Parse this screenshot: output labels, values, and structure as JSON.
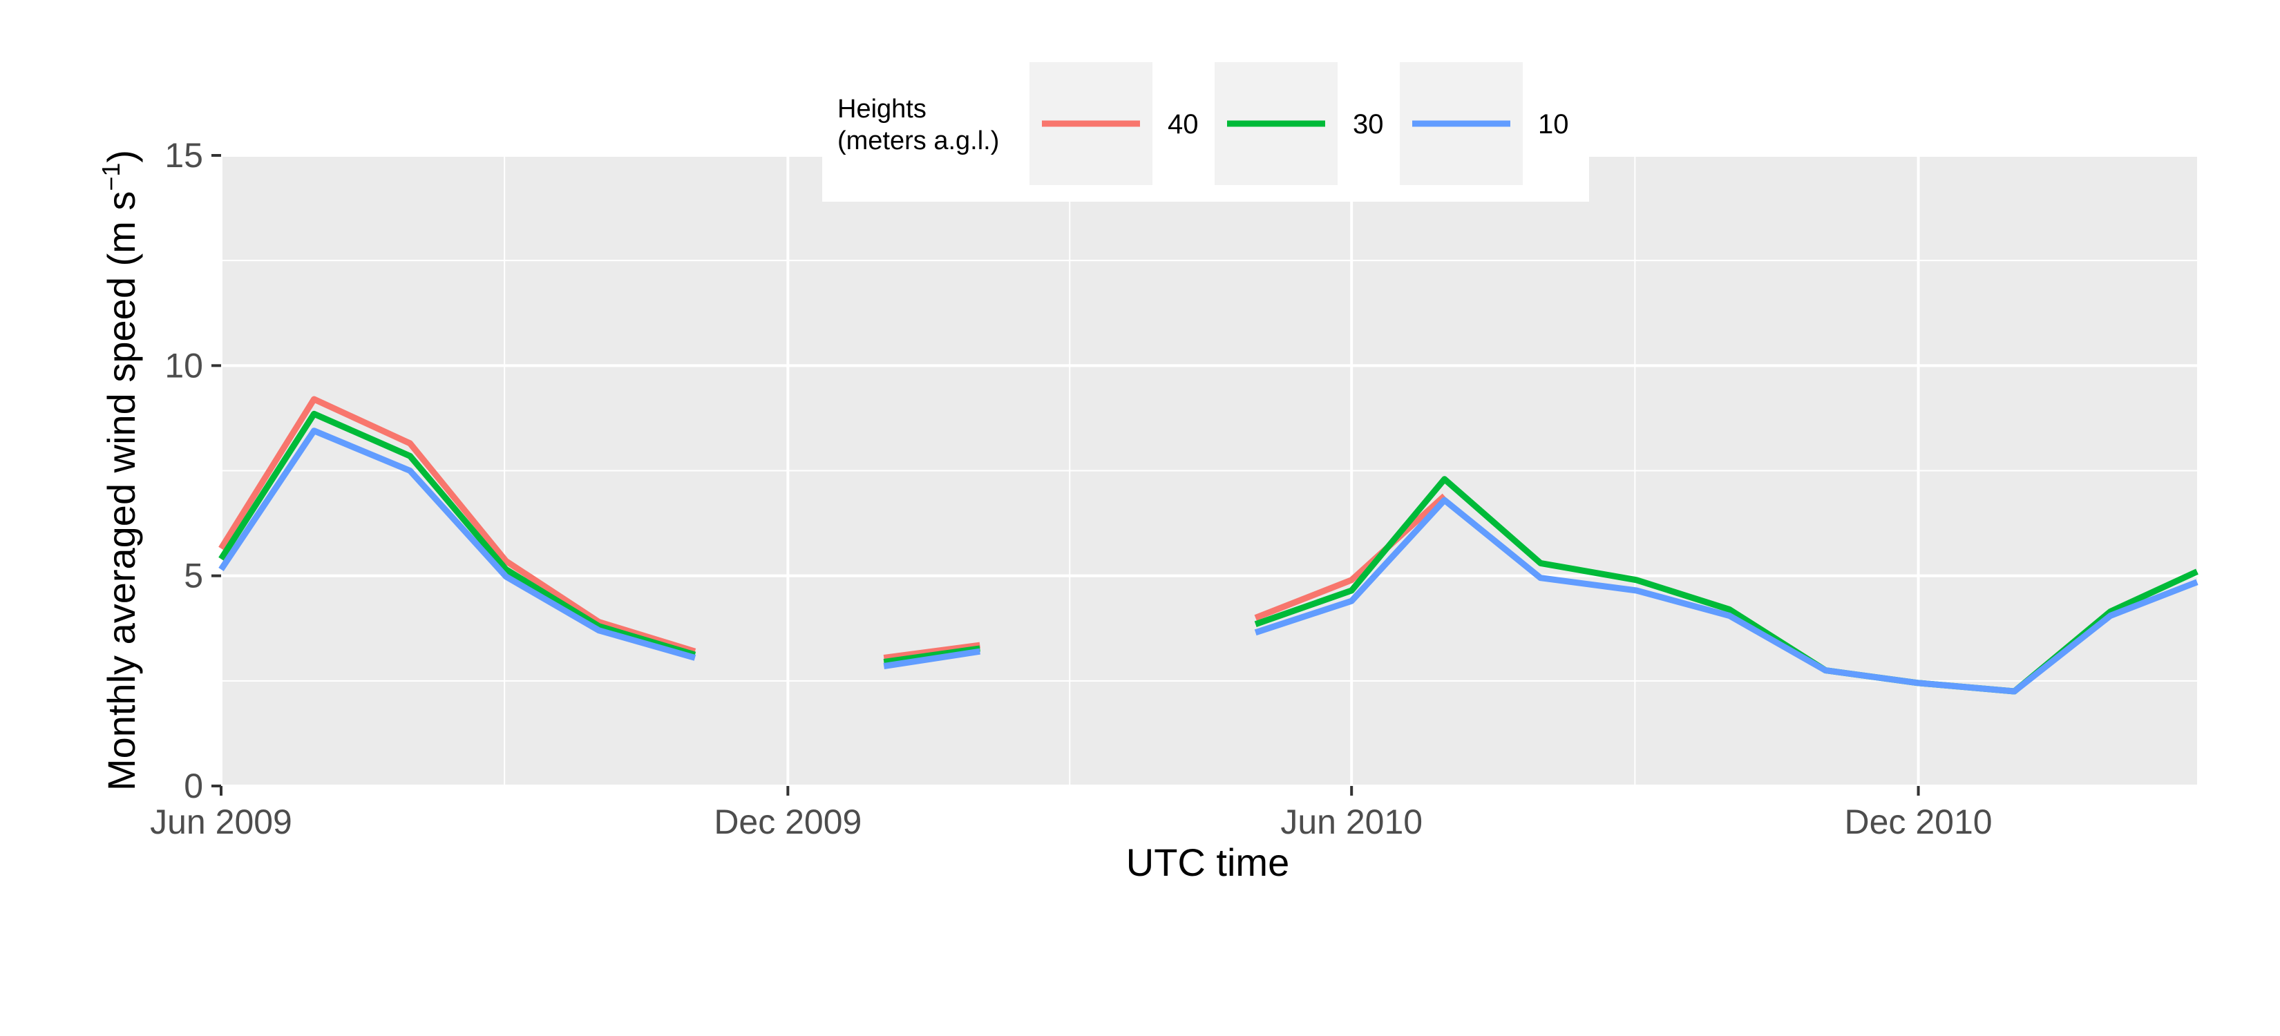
{
  "chart_data": {
    "type": "line",
    "xlabel": "UTC time",
    "ylabel": "Monthly averaged wind speed (m s",
    "ylabel_superscript": "−1",
    "ylabel_close": ")",
    "ylim": [
      0,
      15
    ],
    "yticks": [
      0,
      5,
      10,
      15
    ],
    "xlim": [
      "2009-06-01",
      "2011-03-01"
    ],
    "xticks": [
      {
        "date": "2009-06-01",
        "label": "Jun 2009"
      },
      {
        "date": "2009-12-01",
        "label": "Dec 2009"
      },
      {
        "date": "2010-06-01",
        "label": "Jun 2010"
      },
      {
        "date": "2010-12-01",
        "label": "Dec 2010"
      }
    ],
    "grid": true,
    "legend": {
      "title_line1": "Heights",
      "title_line2": "(meters a.g.l.)",
      "position": "top"
    },
    "series": [
      {
        "name": "40",
        "color": "#F8766D",
        "segments": [
          [
            [
              "2009-06-01",
              5.65
            ],
            [
              "2009-07-01",
              9.2
            ],
            [
              "2009-08-01",
              8.15
            ],
            [
              "2009-09-01",
              5.35
            ],
            [
              "2009-10-01",
              3.9
            ],
            [
              "2009-11-01",
              3.2
            ]
          ],
          [
            [
              "2010-01-01",
              3.05
            ],
            [
              "2010-02-01",
              3.35
            ]
          ],
          [
            [
              "2010-05-01",
              4.0
            ],
            [
              "2010-06-01",
              4.9
            ],
            [
              "2010-07-01",
              6.9
            ]
          ]
        ]
      },
      {
        "name": "30",
        "color": "#00BA38",
        "segments": [
          [
            [
              "2009-06-01",
              5.4
            ],
            [
              "2009-07-01",
              8.85
            ],
            [
              "2009-08-01",
              7.85
            ],
            [
              "2009-09-01",
              5.15
            ],
            [
              "2009-10-01",
              3.8
            ],
            [
              "2009-11-01",
              3.12
            ]
          ],
          [
            [
              "2010-01-01",
              2.95
            ],
            [
              "2010-02-01",
              3.27
            ]
          ],
          [
            [
              "2010-05-01",
              3.85
            ],
            [
              "2010-06-01",
              4.65
            ],
            [
              "2010-07-01",
              7.3
            ],
            [
              "2010-08-01",
              5.3
            ],
            [
              "2010-09-01",
              4.9
            ],
            [
              "2010-10-01",
              4.2
            ],
            [
              "2010-11-01",
              2.75
            ],
            [
              "2010-12-01",
              2.45
            ],
            [
              "2011-01-01",
              2.25
            ],
            [
              "2011-02-01",
              4.15
            ],
            [
              "2011-03-01",
              5.1
            ]
          ]
        ]
      },
      {
        "name": "10",
        "color": "#619CFF",
        "segments": [
          [
            [
              "2009-06-01",
              5.15
            ],
            [
              "2009-07-01",
              8.45
            ],
            [
              "2009-08-01",
              7.5
            ],
            [
              "2009-09-01",
              4.98
            ],
            [
              "2009-10-01",
              3.7
            ],
            [
              "2009-11-01",
              3.05
            ]
          ],
          [
            [
              "2010-01-01",
              2.85
            ],
            [
              "2010-02-01",
              3.2
            ]
          ],
          [
            [
              "2010-05-01",
              3.65
            ],
            [
              "2010-06-01",
              4.4
            ],
            [
              "2010-07-01",
              6.8
            ],
            [
              "2010-08-01",
              4.95
            ],
            [
              "2010-09-01",
              4.65
            ],
            [
              "2010-10-01",
              4.05
            ],
            [
              "2010-11-01",
              2.75
            ],
            [
              "2010-12-01",
              2.45
            ],
            [
              "2011-01-01",
              2.25
            ],
            [
              "2011-02-01",
              4.05
            ],
            [
              "2011-03-01",
              4.85
            ]
          ]
        ]
      }
    ]
  }
}
